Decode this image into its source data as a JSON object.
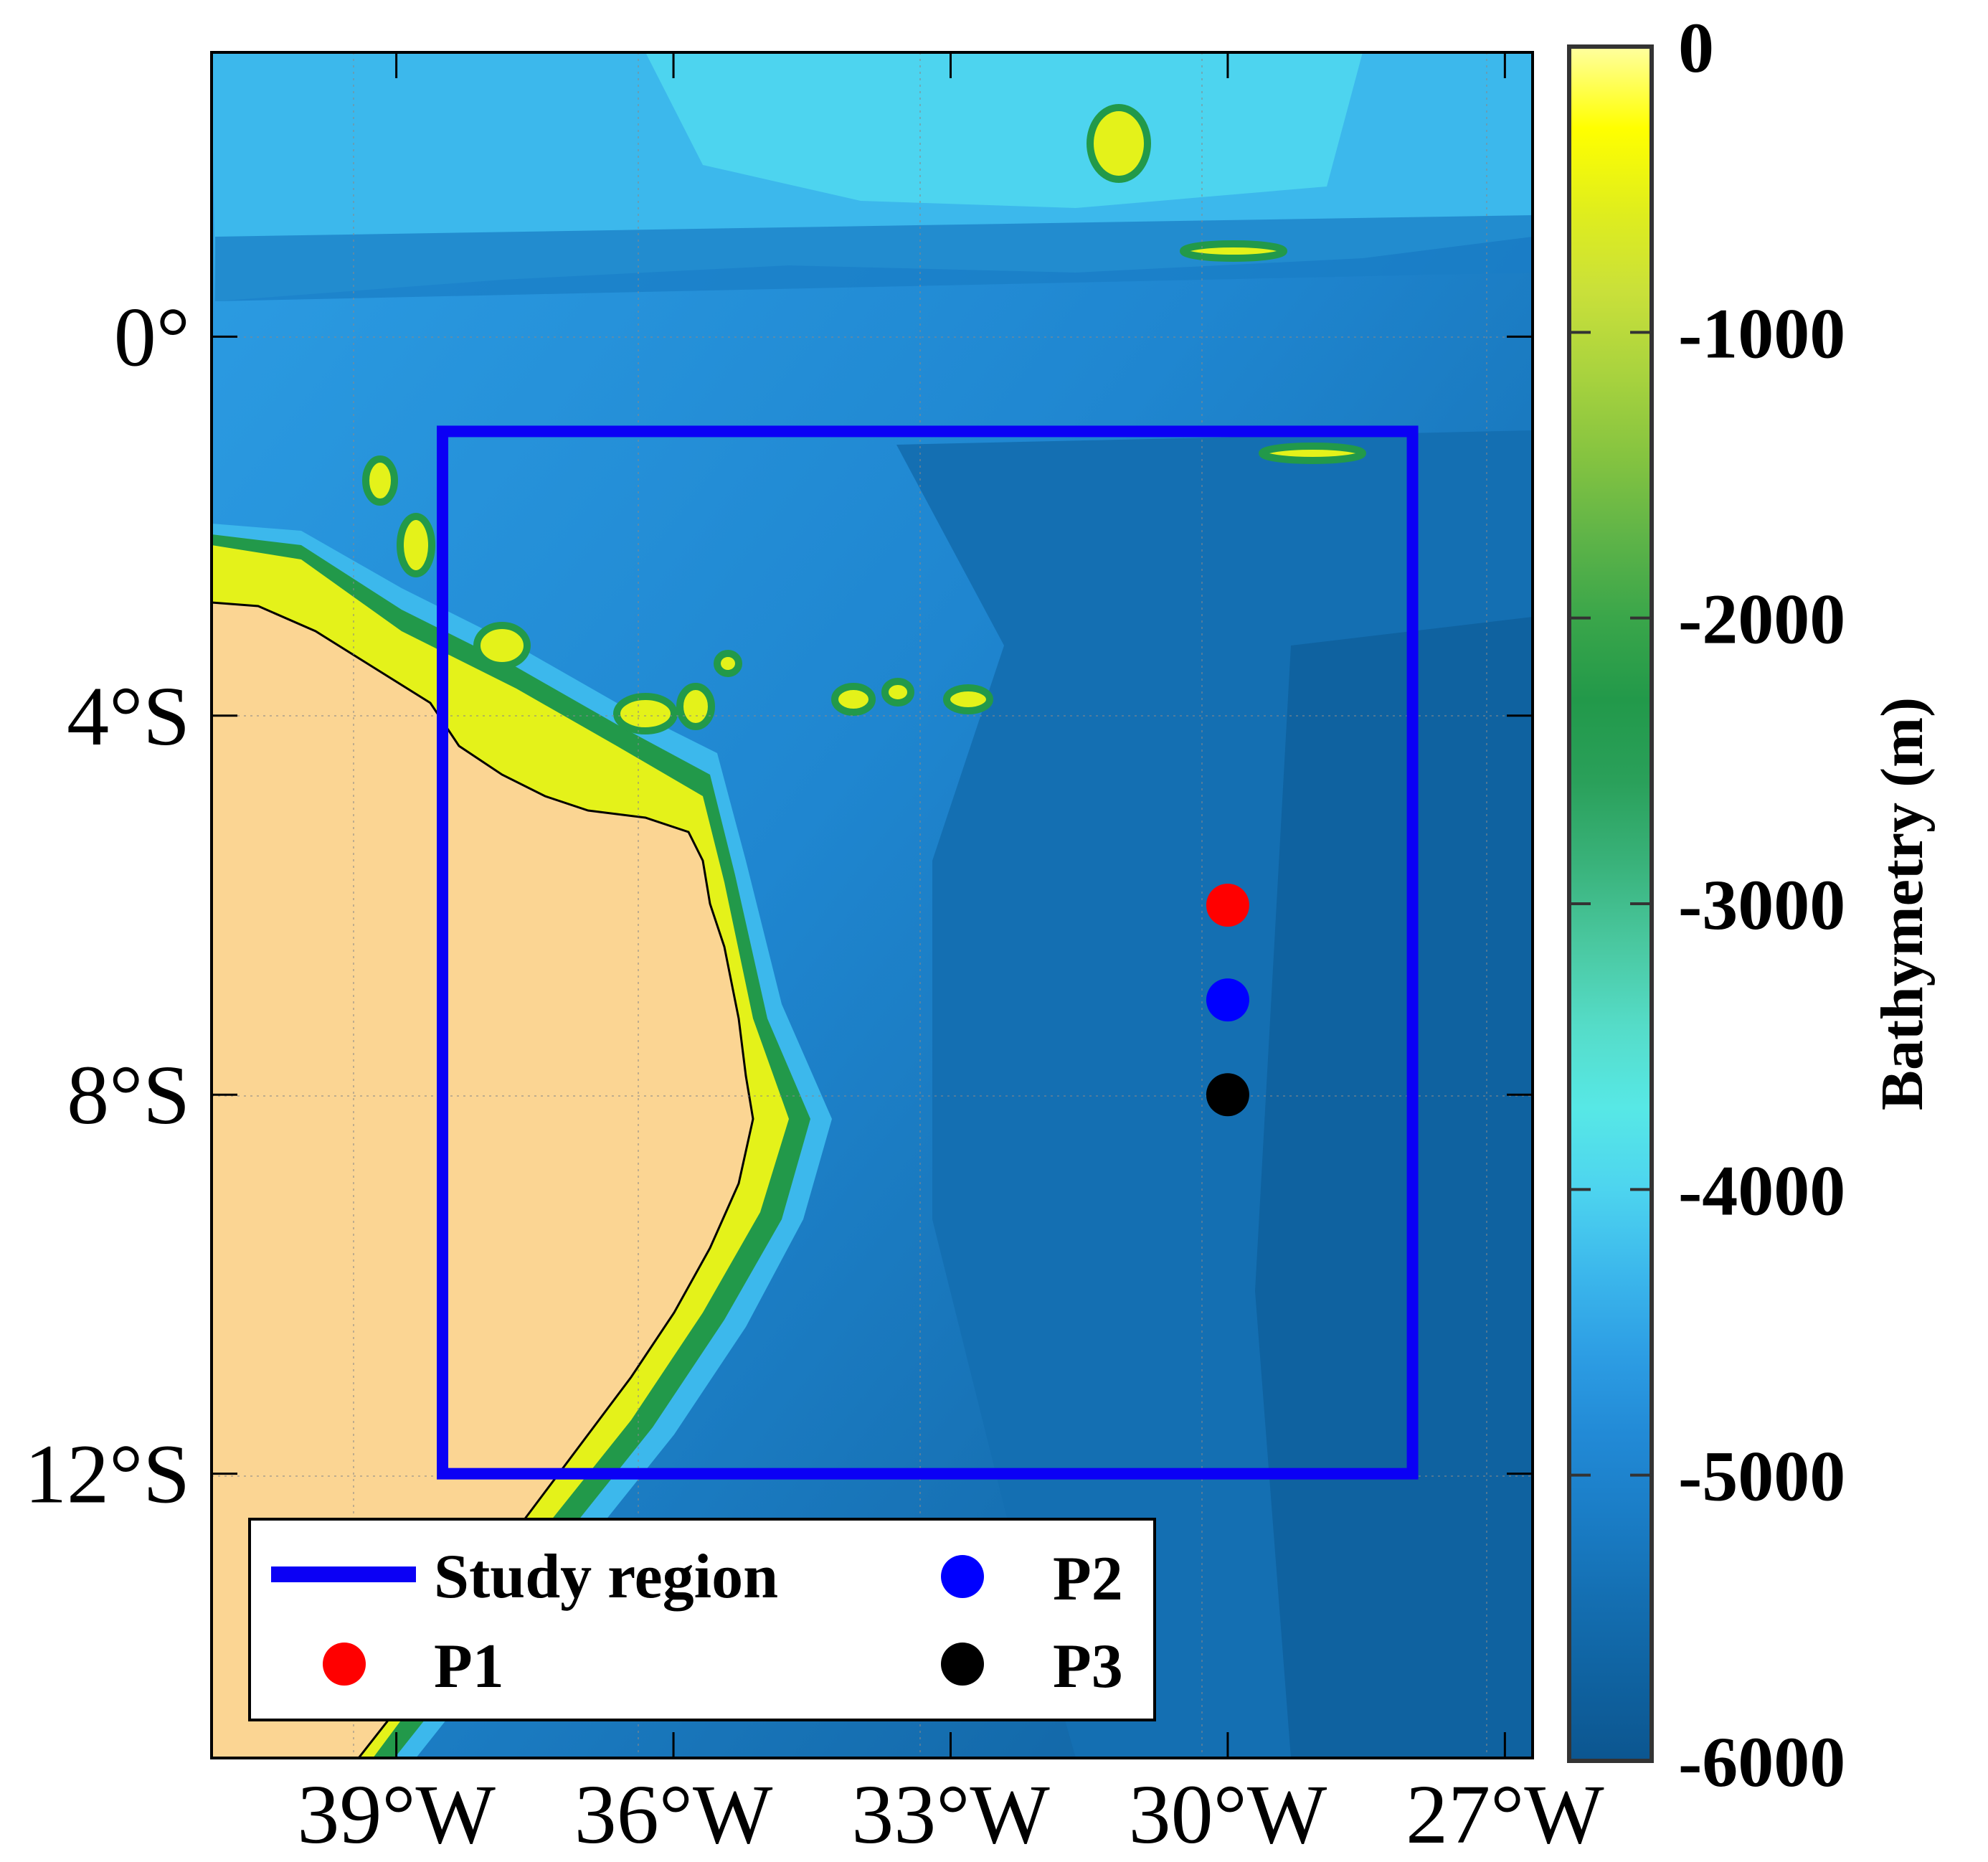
{
  "map": {
    "lon_range": [
      -41,
      -26.7
    ],
    "lat_range": [
      3,
      -15
    ]
  },
  "colorbar": {
    "title": "Bathymetry (m)",
    "ticks": [
      "0",
      "-1000",
      "-2000",
      "-3000",
      "-4000",
      "-5000",
      "-6000"
    ],
    "range": [
      0,
      -6000
    ],
    "colors": [
      "#ffffa0",
      "#ffff00",
      "#e0ee1c",
      "#c9e03a",
      "#a9d33e",
      "#86c440",
      "#5fb448",
      "#3aa64a",
      "#22994a",
      "#2aa05a",
      "#39b27a",
      "#4ac8a0",
      "#55dcc8",
      "#57e8e6",
      "#4dd4ef",
      "#3cb8ec",
      "#2d9ee4",
      "#228ad6",
      "#1a7dc6",
      "#146fb2",
      "#0f62a0",
      "#0c5690"
    ]
  },
  "axes": {
    "x_ticks": [
      "39°W",
      "36°W",
      "33°W",
      "30°W",
      "27°W"
    ],
    "y_ticks": [
      "0°",
      "4°S",
      "8°S",
      "12°S"
    ]
  },
  "study_region": {
    "lon": [
      -38.5,
      -28
    ],
    "lat": [
      -1,
      -12
    ]
  },
  "points": [
    {
      "name": "P1",
      "lon": -30,
      "lat": -6,
      "color": "#ff0000"
    },
    {
      "name": "P2",
      "lon": -30,
      "lat": -7,
      "color": "#0000ff"
    },
    {
      "name": "P3",
      "lon": -30,
      "lat": -8,
      "color": "#000000"
    }
  ],
  "legend": {
    "study_region": "Study region",
    "p1": "P1",
    "p2": "P2",
    "p3": "P3",
    "study_color": "#0b00f5"
  },
  "colors": {
    "land": "#fbd593",
    "coast_shelf": "#e4f21a"
  }
}
